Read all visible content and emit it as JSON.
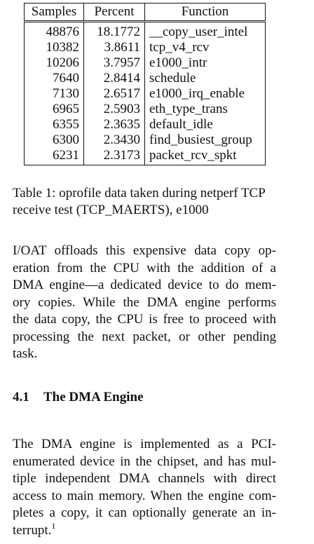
{
  "table": {
    "headers": {
      "samples": "Samples",
      "percent": "Percent",
      "function": "Function"
    },
    "rows": [
      {
        "samples": "48876",
        "percent": "18.1772",
        "function": "__copy_user_intel"
      },
      {
        "samples": "10382",
        "percent": "3.8611",
        "function": "tcp_v4_rcv"
      },
      {
        "samples": "10206",
        "percent": "3.7957",
        "function": "e1000_intr"
      },
      {
        "samples": "7640",
        "percent": "2.8414",
        "function": "schedule"
      },
      {
        "samples": "7130",
        "percent": "2.6517",
        "function": "e1000_irq_enable"
      },
      {
        "samples": "6965",
        "percent": "2.5903",
        "function": "eth_type_trans"
      },
      {
        "samples": "6355",
        "percent": "2.3635",
        "function": "default_idle"
      },
      {
        "samples": "6300",
        "percent": "2.3430",
        "function": "find_busiest_group"
      },
      {
        "samples": "6231",
        "percent": "2.3173",
        "function": "packet_rcv_spkt"
      }
    ]
  },
  "caption": {
    "line_1": "Table 1: oprofile data taken during netperf TCP",
    "line_2": "receive test (TCP_MAERTS), e1000"
  },
  "paragraph_1": {
    "lines": [
      "I/OAT offloads this expensive data copy op-",
      "eration from the CPU with the addition of a",
      "DMA engine—a dedicated device to do mem-",
      "ory copies.  While the DMA engine performs",
      "the data copy, the CPU is free to proceed with",
      "processing the next packet, or other pending",
      "task."
    ]
  },
  "section": {
    "number": "4.1",
    "title": "The DMA Engine"
  },
  "paragraph_2": {
    "lines": [
      "The DMA engine is implemented as a PCI-",
      "enumerated device in the chipset, and has mul-",
      "tiple independent DMA channels with direct",
      "access to main memory. When the engine com-",
      "pletes a copy, it can optionally generate an in-",
      "terrupt."
    ],
    "footnote_marker": "1"
  }
}
